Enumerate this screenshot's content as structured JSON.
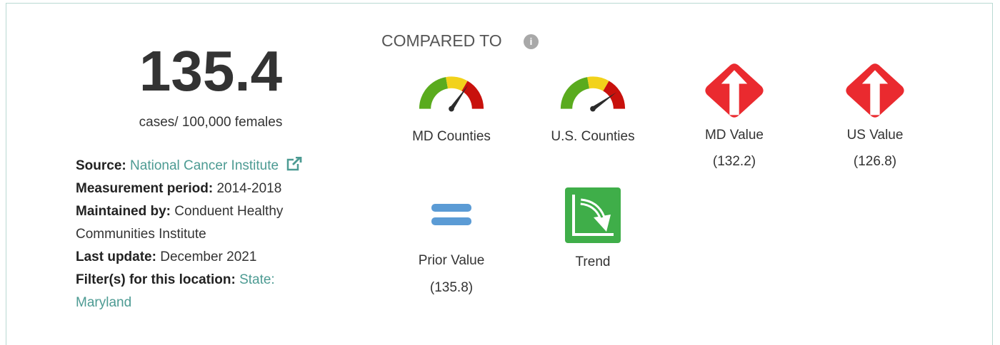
{
  "indicator": {
    "value": "135.4",
    "unit": "cases/ 100,000 females"
  },
  "details": [
    {
      "label": "Source:",
      "text": "National Cancer Institute"
    },
    {
      "label": "Measurement period:",
      "text": "2014-2018"
    },
    {
      "label": "Maintained by:",
      "text": "Conduent Healthy Communities Institute"
    },
    {
      "label": "Last update:",
      "text": "December 2021"
    },
    {
      "label": "Filter(s) for this location:",
      "text": "State: Maryland"
    }
  ],
  "compared_to": {
    "title": "COMPARED TO",
    "items": [
      {
        "label": "MD Counties"
      },
      {
        "label": "U.S. Counties"
      },
      {
        "label": "MD Value",
        "value": "(132.2)"
      },
      {
        "label": "US Value",
        "value": "(126.8)"
      },
      {
        "label": "Prior Value",
        "value": "(135.8)"
      },
      {
        "label": "Trend"
      }
    ]
  }
}
